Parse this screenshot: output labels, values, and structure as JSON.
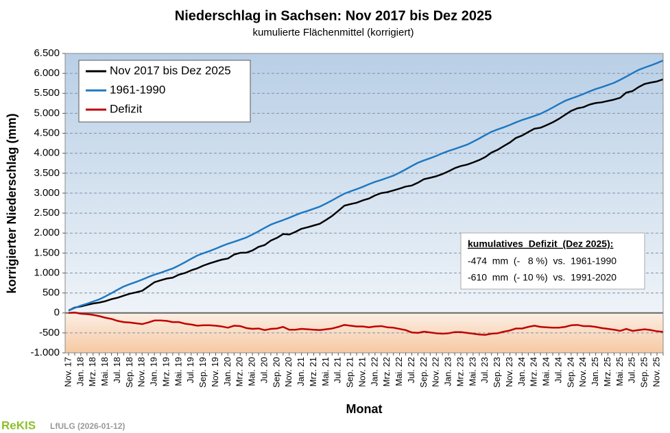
{
  "chart_data": {
    "type": "line",
    "title": "Niederschlag in Sachsen:  Nov 2017 bis Dez 2025",
    "subtitle": "kumulierte Flächenmittel (korrigiert)",
    "x_label": "Monat",
    "y_label": "korrigierter Niederschlag (mm)",
    "categories": [
      "Nov. 17",
      null,
      "Jan. 18",
      null,
      "Mrz. 18",
      null,
      "Mai. 18",
      null,
      "Jul. 18",
      null,
      "Sep. 18",
      null,
      "Nov. 18",
      null,
      "Jan. 19",
      null,
      "Mrz. 19",
      null,
      "Mai. 19",
      null,
      "Jul. 19",
      null,
      "Sep. 19",
      null,
      "Nov. 19",
      null,
      "Jan. 20",
      null,
      "Mrz. 20",
      null,
      "Mai. 20",
      null,
      "Jul. 20",
      null,
      "Sep. 20",
      null,
      "Nov. 20",
      null,
      "Jan. 21",
      null,
      "Mrz. 21",
      null,
      "Mai. 21",
      null,
      "Jul. 21",
      null,
      "Sep. 21",
      null,
      "Nov. 21",
      null,
      "Jan. 22",
      null,
      "Mrz. 22",
      null,
      "Mai. 22",
      null,
      "Jul. 22",
      null,
      "Sep. 22",
      null,
      "Nov. 22",
      null,
      "Jan. 23",
      null,
      "Mrz. 23",
      null,
      "Mai. 23",
      null,
      "Jul. 23",
      null,
      "Sep. 23",
      null,
      "Nov. 23",
      null,
      "Jan. 24",
      null,
      "Mrz. 24",
      null,
      "Mai. 24",
      null,
      "Jul. 24",
      null,
      "Sep. 24",
      null,
      "Nov. 24",
      null,
      "Jan. 25",
      null,
      "Mrz. 25",
      null,
      "Mai. 25",
      null,
      "Jul. 25",
      null,
      "Sep. 25",
      null,
      "Nov. 25",
      null
    ],
    "series": [
      {
        "name": "Nov 2017 bis Dez 2025",
        "color": "#000000",
        "values": [
          59,
          134,
          163,
          201,
          235,
          259,
          294,
          345,
          381,
          432,
          481,
          515,
          554,
          659,
          768,
          816,
          860,
          884,
          959,
          1000,
          1066,
          1117,
          1186,
          1240,
          1289,
          1334,
          1363,
          1461,
          1505,
          1509,
          1564,
          1655,
          1701,
          1812,
          1881,
          1975,
          1964,
          2029,
          2108,
          2146,
          2190,
          2234,
          2329,
          2430,
          2556,
          2687,
          2726,
          2760,
          2819,
          2864,
          2943,
          3001,
          3025,
          3069,
          3114,
          3165,
          3191,
          3262,
          3351,
          3385,
          3424,
          3479,
          3548,
          3626,
          3680,
          3714,
          3769,
          3830,
          3906,
          4017,
          4086,
          4180,
          4269,
          4384,
          4443,
          4531,
          4615,
          4639,
          4704,
          4775,
          4861,
          4962,
          5061,
          5125,
          5154,
          5219,
          5258,
          5276,
          5310,
          5344,
          5389,
          5520,
          5556,
          5657,
          5736,
          5770,
          5799,
          5850
        ]
      },
      {
        "name": "1961-1990",
        "color": "#1f78c1",
        "values": [
          59,
          124,
          183,
          231,
          285,
          339,
          414,
          495,
          581,
          662,
          721,
          775,
          834,
          899,
          958,
          1006,
          1060,
          1114,
          1189,
          1270,
          1356,
          1437,
          1496,
          1550,
          1609,
          1674,
          1733,
          1781,
          1835,
          1889,
          1964,
          2045,
          2131,
          2212,
          2271,
          2325,
          2384,
          2449,
          2508,
          2556,
          2610,
          2664,
          2739,
          2820,
          2906,
          2987,
          3046,
          3100,
          3159,
          3224,
          3283,
          3331,
          3385,
          3439,
          3514,
          3595,
          3681,
          3762,
          3821,
          3875,
          3934,
          3999,
          4058,
          4106,
          4160,
          4214,
          4289,
          4370,
          4456,
          4537,
          4596,
          4650,
          4709,
          4774,
          4833,
          4881,
          4935,
          4989,
          5064,
          5145,
          5231,
          5312,
          5371,
          5425,
          5484,
          5549,
          5608,
          5656,
          5710,
          5764,
          5839,
          5920,
          6006,
          6087,
          6146,
          6200,
          6259,
          6324
        ]
      },
      {
        "name": "Defizit",
        "color": "#c00000",
        "values": [
          0,
          10,
          -20,
          -30,
          -50,
          -80,
          -120,
          -150,
          -200,
          -230,
          -240,
          -260,
          -280,
          -240,
          -190,
          -190,
          -200,
          -230,
          -230,
          -270,
          -290,
          -320,
          -310,
          -310,
          -320,
          -340,
          -370,
          -320,
          -330,
          -380,
          -400,
          -390,
          -430,
          -400,
          -390,
          -350,
          -420,
          -420,
          -400,
          -410,
          -420,
          -430,
          -410,
          -390,
          -350,
          -300,
          -320,
          -340,
          -340,
          -360,
          -340,
          -330,
          -360,
          -370,
          -400,
          -430,
          -490,
          -500,
          -470,
          -490,
          -510,
          -520,
          -510,
          -480,
          -480,
          -500,
          -520,
          -540,
          -550,
          -520,
          -510,
          -470,
          -440,
          -390,
          -390,
          -350,
          -320,
          -350,
          -360,
          -370,
          -370,
          -350,
          -310,
          -300,
          -330,
          -330,
          -350,
          -380,
          -400,
          -420,
          -450,
          -400,
          -450,
          -430,
          -410,
          -430,
          -460,
          -474
        ]
      }
    ],
    "ylim": [
      -1000,
      6500
    ],
    "yticks": [
      {
        "value": -1000,
        "label": "-1.000"
      },
      -500,
      0,
      500,
      {
        "value": 1000,
        "label": "1.000"
      },
      {
        "value": 1500,
        "label": "1.500"
      },
      {
        "value": 2000,
        "label": "2.000"
      },
      {
        "value": 2500,
        "label": "2.500"
      },
      {
        "value": 3000,
        "label": "3.000"
      },
      {
        "value": 3500,
        "label": "3.500"
      },
      {
        "value": 4000,
        "label": "4.000"
      },
      {
        "value": 4500,
        "label": "4.500"
      },
      {
        "value": 5000,
        "label": "5.000"
      },
      {
        "value": 5500,
        "label": "5.500"
      },
      {
        "value": 6000,
        "label": "6.000"
      },
      {
        "value": 6500,
        "label": "6.500"
      }
    ],
    "grid": true,
    "legend": "upper left",
    "annotation": {
      "title": "kumulatives  Defizit  (Dez 2025):",
      "lines": [
        "-474  mm  (-   8 %)  vs.  1961-1990",
        "-610  mm  (- 10 %)  vs.  1991-2020"
      ]
    },
    "footer": {
      "logo": "ReKIS",
      "source": "LfULG (2026-01-12)"
    }
  }
}
